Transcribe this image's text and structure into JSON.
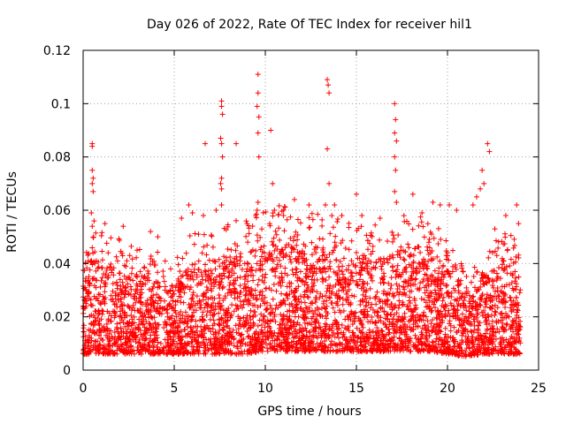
{
  "chart_data": {
    "type": "scatter",
    "title": "Day 026 of 2022, Rate Of TEC Index for receiver hil1",
    "xlabel": "GPS time / hours",
    "ylabel": "ROTI / TECUs",
    "xlim": [
      0,
      25
    ],
    "ylim": [
      0,
      0.12
    ],
    "xticks": [
      0,
      5,
      10,
      15,
      20,
      25
    ],
    "xtick_labels": [
      "0",
      "5",
      "10",
      "15",
      "20",
      "25"
    ],
    "yticks": [
      0,
      0.02,
      0.04,
      0.06,
      0.08,
      0.1,
      0.12
    ],
    "ytick_labels": [
      "0",
      "0.02",
      "0.04",
      "0.06",
      "0.08",
      "0.1",
      "0.12"
    ],
    "grid": true,
    "marker": "plus",
    "color": "#ff0000",
    "series": [
      {
        "name": "ROTI",
        "description": "Dense cloud of ROTI samples between 0 and 24 h, mostly 0.005–0.045 TECU/s, with sparse spikes",
        "density_bins_hours": [
          0,
          1,
          2,
          3,
          4,
          5,
          6,
          7,
          8,
          9,
          10,
          11,
          12,
          13,
          14,
          15,
          16,
          17,
          18,
          19,
          20,
          21,
          22,
          23,
          24
        ],
        "typical_upper": [
          0.042,
          0.04,
          0.038,
          0.036,
          0.035,
          0.033,
          0.04,
          0.042,
          0.043,
          0.044,
          0.047,
          0.048,
          0.047,
          0.046,
          0.045,
          0.043,
          0.043,
          0.042,
          0.048,
          0.045,
          0.038,
          0.03,
          0.035,
          0.04,
          0.038
        ],
        "typical_lower": [
          0.006,
          0.006,
          0.006,
          0.006,
          0.006,
          0.006,
          0.006,
          0.006,
          0.006,
          0.006,
          0.007,
          0.007,
          0.007,
          0.007,
          0.007,
          0.007,
          0.007,
          0.007,
          0.007,
          0.007,
          0.006,
          0.005,
          0.006,
          0.006,
          0.006
        ],
        "spikes": [
          [
            0.5,
            0.085
          ],
          [
            0.5,
            0.084
          ],
          [
            0.5,
            0.075
          ],
          [
            0.55,
            0.072
          ],
          [
            0.5,
            0.07
          ],
          [
            0.55,
            0.067
          ],
          [
            0.45,
            0.059
          ],
          [
            0.6,
            0.056
          ],
          [
            0.5,
            0.054
          ],
          [
            1.2,
            0.055
          ],
          [
            2.2,
            0.054
          ],
          [
            3.7,
            0.052
          ],
          [
            4.1,
            0.05
          ],
          [
            5.4,
            0.057
          ],
          [
            5.8,
            0.062
          ],
          [
            6.0,
            0.059
          ],
          [
            6.6,
            0.058
          ],
          [
            6.7,
            0.085
          ],
          [
            7.3,
            0.06
          ],
          [
            7.6,
            0.101
          ],
          [
            7.6,
            0.099
          ],
          [
            7.65,
            0.096
          ],
          [
            7.55,
            0.087
          ],
          [
            7.6,
            0.085
          ],
          [
            7.65,
            0.08
          ],
          [
            7.6,
            0.072
          ],
          [
            7.55,
            0.07
          ],
          [
            7.6,
            0.068
          ],
          [
            7.6,
            0.062
          ],
          [
            8.4,
            0.085
          ],
          [
            9.0,
            0.055
          ],
          [
            9.6,
            0.111
          ],
          [
            9.6,
            0.104
          ],
          [
            9.55,
            0.099
          ],
          [
            9.65,
            0.095
          ],
          [
            9.6,
            0.089
          ],
          [
            9.65,
            0.08
          ],
          [
            9.6,
            0.063
          ],
          [
            9.55,
            0.06
          ],
          [
            10.3,
            0.09
          ],
          [
            10.4,
            0.07
          ],
          [
            10.5,
            0.06
          ],
          [
            11.0,
            0.058
          ],
          [
            11.6,
            0.064
          ],
          [
            12.4,
            0.062
          ],
          [
            13.4,
            0.109
          ],
          [
            13.45,
            0.107
          ],
          [
            13.5,
            0.104
          ],
          [
            13.4,
            0.083
          ],
          [
            13.5,
            0.07
          ],
          [
            13.3,
            0.062
          ],
          [
            13.8,
            0.062
          ],
          [
            14.2,
            0.058
          ],
          [
            15.0,
            0.066
          ],
          [
            15.3,
            0.058
          ],
          [
            16.3,
            0.057
          ],
          [
            17.1,
            0.1
          ],
          [
            17.15,
            0.094
          ],
          [
            17.1,
            0.089
          ],
          [
            17.2,
            0.086
          ],
          [
            17.1,
            0.08
          ],
          [
            17.15,
            0.075
          ],
          [
            17.1,
            0.067
          ],
          [
            17.2,
            0.063
          ],
          [
            18.1,
            0.066
          ],
          [
            18.6,
            0.059
          ],
          [
            19.2,
            0.063
          ],
          [
            19.6,
            0.062
          ],
          [
            20.1,
            0.062
          ],
          [
            20.5,
            0.06
          ],
          [
            21.4,
            0.062
          ],
          [
            21.6,
            0.065
          ],
          [
            21.8,
            0.068
          ],
          [
            22.0,
            0.07
          ],
          [
            21.9,
            0.075
          ],
          [
            22.2,
            0.085
          ],
          [
            22.3,
            0.082
          ],
          [
            22.6,
            0.053
          ],
          [
            23.2,
            0.058
          ],
          [
            23.8,
            0.062
          ],
          [
            23.9,
            0.055
          ]
        ]
      }
    ]
  }
}
